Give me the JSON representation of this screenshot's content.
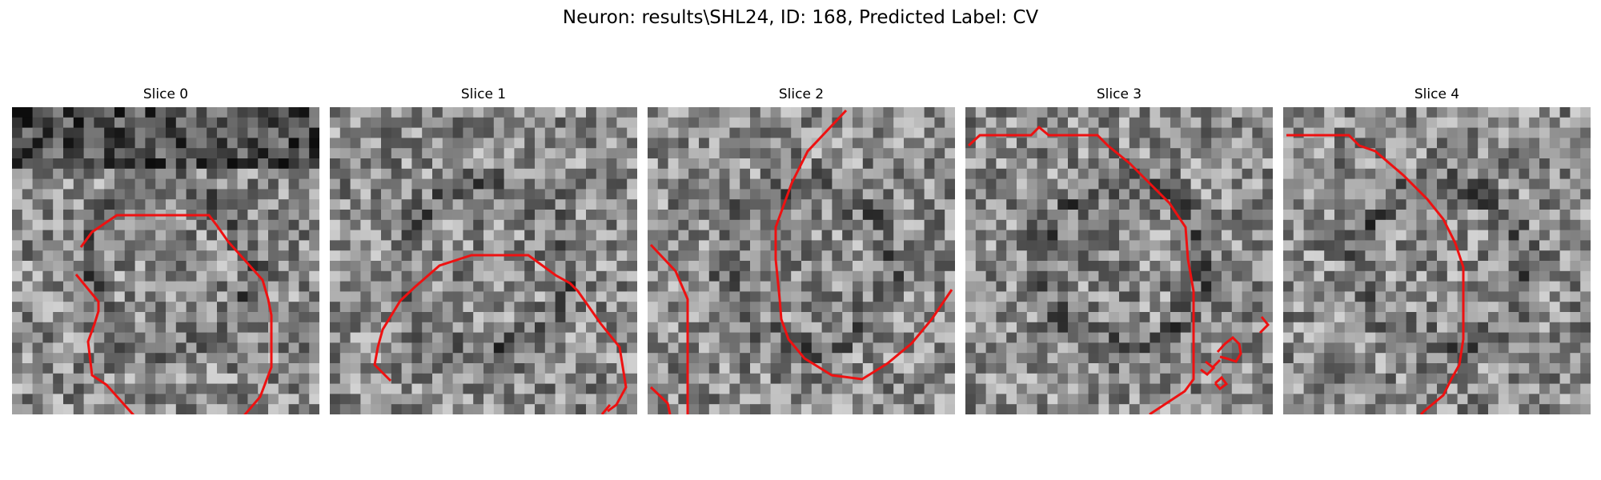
{
  "figure": {
    "title": "Neuron: results\\SHL24, ID: 168, Predicted Label: CV",
    "contour_color": "#ee1111",
    "colormap": "gray"
  },
  "panels": [
    {
      "title": "Slice 0"
    },
    {
      "title": "Slice 1"
    },
    {
      "title": "Slice 2"
    },
    {
      "title": "Slice 3"
    },
    {
      "title": "Slice 4"
    }
  ]
}
